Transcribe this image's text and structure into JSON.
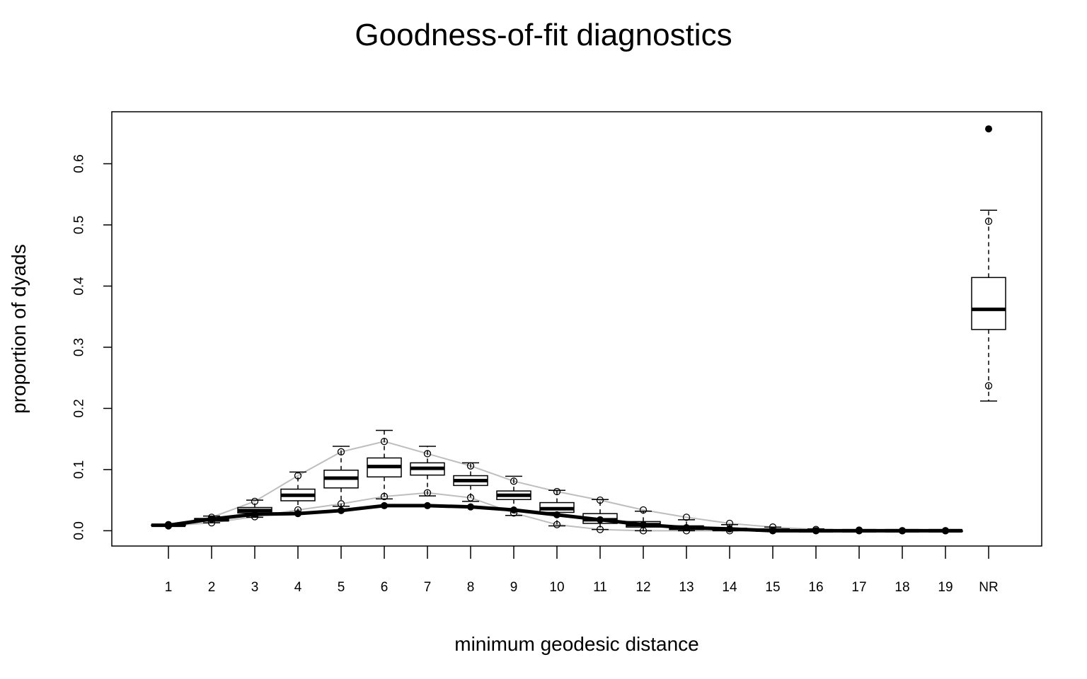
{
  "chart_data": {
    "type": "box",
    "title": "Goodness-of-fit diagnostics",
    "xlabel": "minimum geodesic distance",
    "ylabel": "proportion of dyads",
    "ylim": [
      -0.025,
      0.685
    ],
    "yticks": [
      "0.0",
      "0.1",
      "0.2",
      "0.3",
      "0.4",
      "0.5",
      "0.6"
    ],
    "categories": [
      "1",
      "2",
      "3",
      "4",
      "5",
      "6",
      "7",
      "8",
      "9",
      "10",
      "11",
      "12",
      "13",
      "14",
      "15",
      "16",
      "17",
      "18",
      "19",
      "NR"
    ],
    "boxes": [
      {
        "min": 0.008,
        "q1": 0.0085,
        "median": 0.009,
        "q3": 0.0095,
        "max": 0.01
      },
      {
        "min": 0.013,
        "q1": 0.016,
        "median": 0.018,
        "q3": 0.02,
        "max": 0.024
      },
      {
        "min": 0.022,
        "q1": 0.029,
        "median": 0.033,
        "q3": 0.038,
        "max": 0.05
      },
      {
        "min": 0.03,
        "q1": 0.049,
        "median": 0.058,
        "q3": 0.068,
        "max": 0.096
      },
      {
        "min": 0.04,
        "q1": 0.07,
        "median": 0.086,
        "q3": 0.099,
        "max": 0.138
      },
      {
        "min": 0.052,
        "q1": 0.088,
        "median": 0.105,
        "q3": 0.119,
        "max": 0.164
      },
      {
        "min": 0.057,
        "q1": 0.091,
        "median": 0.102,
        "q3": 0.111,
        "max": 0.138
      },
      {
        "min": 0.048,
        "q1": 0.074,
        "median": 0.082,
        "q3": 0.09,
        "max": 0.111
      },
      {
        "min": 0.025,
        "q1": 0.051,
        "median": 0.058,
        "q3": 0.065,
        "max": 0.089
      },
      {
        "min": 0.008,
        "q1": 0.03,
        "median": 0.036,
        "q3": 0.046,
        "max": 0.066
      },
      {
        "min": 0.002,
        "q1": 0.012,
        "median": 0.018,
        "q3": 0.028,
        "max": 0.051
      },
      {
        "min": 0.0,
        "q1": 0.006,
        "median": 0.01,
        "q3": 0.015,
        "max": 0.032
      },
      {
        "min": 0.0,
        "q1": 0.002,
        "median": 0.005,
        "q3": 0.008,
        "max": 0.018
      },
      {
        "min": 0.0,
        "q1": 0.001,
        "median": 0.002,
        "q3": 0.004,
        "max": 0.01
      },
      {
        "min": 0.0,
        "q1": 0.0,
        "median": 0.001,
        "q3": 0.002,
        "max": 0.006
      },
      {
        "min": 0.0,
        "q1": 0.0,
        "median": 0.0,
        "q3": 0.001,
        "max": 0.003
      },
      {
        "min": 0.0,
        "q1": 0.0,
        "median": 0.0,
        "q3": 0.0,
        "max": 0.001
      },
      {
        "min": 0.0,
        "q1": 0.0,
        "median": 0.0,
        "q3": 0.0,
        "max": 0.0
      },
      {
        "min": 0.0,
        "q1": 0.0,
        "median": 0.0,
        "q3": 0.0,
        "max": 0.0
      },
      {
        "min": 0.212,
        "q1": 0.329,
        "median": 0.362,
        "q3": 0.414,
        "max": 0.524
      }
    ],
    "interval_upper": [
      0.01,
      0.022,
      0.048,
      0.09,
      0.129,
      0.146,
      0.126,
      0.106,
      0.081,
      0.064,
      0.05,
      0.034,
      0.022,
      0.012,
      0.006,
      0.002,
      0.001,
      0.0,
      0.0,
      0.506
    ],
    "interval_lower": [
      0.008,
      0.013,
      0.023,
      0.034,
      0.044,
      0.056,
      0.062,
      0.054,
      0.029,
      0.01,
      0.002,
      0.0,
      0.0,
      0.0,
      0.0,
      0.0,
      0.0,
      0.0,
      0.0,
      0.237
    ],
    "observed": [
      0.009,
      0.019,
      0.027,
      0.028,
      0.033,
      0.041,
      0.041,
      0.039,
      0.034,
      0.026,
      0.018,
      0.01,
      0.005,
      0.003,
      0.0,
      0.0,
      0.0,
      0.0,
      0.0,
      0.657
    ],
    "colors": {
      "observed": "#000000",
      "interval": "#bebebe",
      "box": "#000000"
    }
  }
}
